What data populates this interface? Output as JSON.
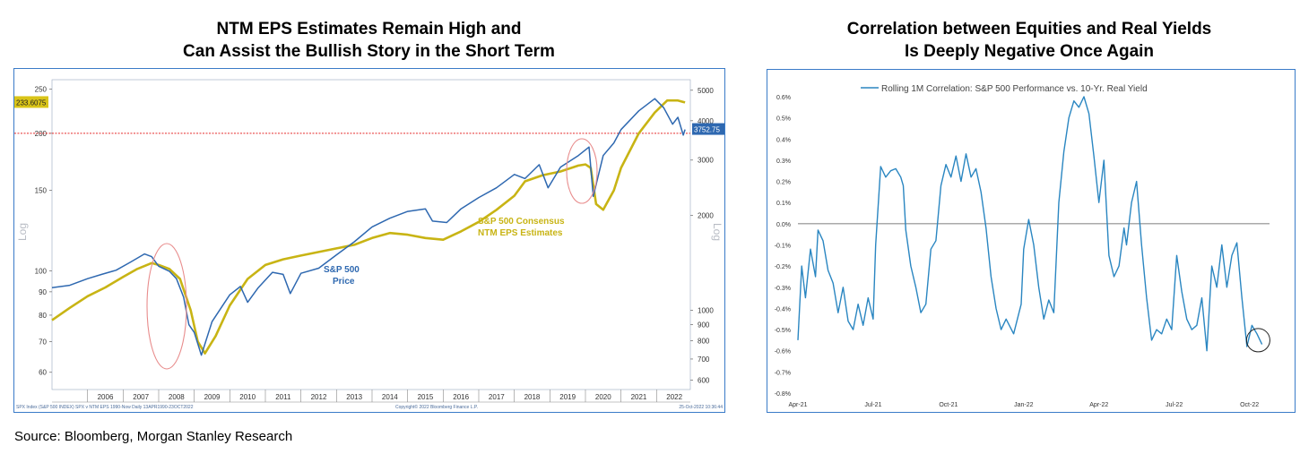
{
  "titles": {
    "left": [
      "NTM EPS Estimates Remain High and",
      "Can Assist the Bullish Story in the Short Term"
    ],
    "right": [
      "Correlation between Equities and Real Yields",
      "Is Deeply Negative Once Again"
    ]
  },
  "source": "Source: Bloomberg, Morgan Stanley Research",
  "colors": {
    "spx": "#2e68b0",
    "eps": "#c8b414",
    "corr": "#2a86c1",
    "refline": "#e52b2b",
    "panel_border": "#3a7bc8"
  },
  "chart_data": [
    {
      "type": "line",
      "title": "NTM EPS Estimates Remain High and Can Assist the Bullish Story in the Short Term",
      "left_axis_label": "Log",
      "right_axis_label": "Log",
      "left_ticks": [
        "250",
        "200",
        "150",
        "100",
        "90",
        "80",
        "70",
        "60"
      ],
      "right_ticks": [
        "5000",
        "4000",
        "3000",
        "2000",
        "1000",
        "900",
        "800",
        "700",
        "600"
      ],
      "x_ticks": [
        "2006",
        "2007",
        "2008",
        "2009",
        "2010",
        "2011",
        "2012",
        "2013",
        "2014",
        "2015",
        "2016",
        "2017",
        "2018",
        "2019",
        "2020",
        "2021",
        "2022"
      ],
      "ref_line_value": 200,
      "last_eps_label": "233.6075",
      "last_spx_label": "3752.75",
      "footer_left": "SPX Index (S&P 500 INDEX) SPX v NTM EPS 1990-Now Daily 13APR1990-23OCT2022",
      "footer_mid": "Copyright© 2022 Bloomberg Finance L.P.",
      "footer_right": "25-Oct-2022 10:36:44",
      "series": [
        {
          "name": "S&P 500 Price",
          "label_lines": [
            "S&P 500",
            "Price"
          ],
          "axis": "right",
          "x": [
            2005.0,
            2005.5,
            2006.0,
            2006.4,
            2006.8,
            2007.2,
            2007.6,
            2007.8,
            2008.0,
            2008.3,
            2008.5,
            2008.7,
            2008.85,
            2009.0,
            2009.2,
            2009.5,
            2010.0,
            2010.3,
            2010.5,
            2010.8,
            2011.2,
            2011.5,
            2011.7,
            2012.0,
            2012.5,
            2013.0,
            2013.5,
            2014.0,
            2014.5,
            2015.0,
            2015.5,
            2015.7,
            2016.1,
            2016.5,
            2017.0,
            2017.5,
            2018.0,
            2018.3,
            2018.7,
            2018.95,
            2019.3,
            2019.8,
            2020.1,
            2020.22,
            2020.5,
            2020.8,
            2021.0,
            2021.5,
            2021.95,
            2022.2,
            2022.45,
            2022.6,
            2022.75,
            2022.8
          ],
          "values": [
            1180,
            1200,
            1260,
            1300,
            1340,
            1420,
            1510,
            1480,
            1380,
            1330,
            1260,
            1100,
            900,
            850,
            720,
            920,
            1120,
            1190,
            1060,
            1180,
            1320,
            1300,
            1130,
            1310,
            1360,
            1500,
            1650,
            1840,
            1960,
            2060,
            2100,
            1920,
            1900,
            2100,
            2280,
            2450,
            2700,
            2620,
            2900,
            2450,
            2850,
            3100,
            3300,
            2300,
            3100,
            3400,
            3750,
            4300,
            4700,
            4400,
            3900,
            4100,
            3600,
            3752.75
          ]
        },
        {
          "name": "S&P 500 Consensus NTM EPS Estimates",
          "label_lines": [
            "S&P 500 Consensus",
            "NTM EPS Estimates"
          ],
          "axis": "left",
          "x": [
            2005.0,
            2005.5,
            2006.0,
            2006.5,
            2007.0,
            2007.4,
            2007.8,
            2008.0,
            2008.3,
            2008.6,
            2008.9,
            2009.1,
            2009.3,
            2009.6,
            2010.0,
            2010.5,
            2011.0,
            2011.5,
            2012.0,
            2012.5,
            2013.0,
            2013.5,
            2014.0,
            2014.5,
            2015.0,
            2015.5,
            2016.0,
            2016.5,
            2017.0,
            2017.5,
            2018.0,
            2018.3,
            2018.8,
            2019.3,
            2019.8,
            2020.0,
            2020.15,
            2020.3,
            2020.5,
            2020.8,
            2021.0,
            2021.5,
            2021.95,
            2022.3,
            2022.6,
            2022.8
          ],
          "values": [
            78,
            83,
            88,
            92,
            97,
            101,
            104,
            103,
            101,
            96,
            82,
            70,
            66,
            72,
            84,
            96,
            103,
            106,
            108,
            110,
            112,
            114,
            118,
            121,
            120,
            118,
            117,
            122,
            128,
            136,
            146,
            157,
            162,
            165,
            170,
            171,
            168,
            140,
            136,
            150,
            168,
            200,
            222,
            236,
            236,
            233.6
          ]
        }
      ],
      "annotations": [
        "S&P 500 Price label",
        "S&P 500 Consensus NTM EPS Estimates label",
        "circle around 2008-2009 drop",
        "circle around 2020 drop"
      ]
    },
    {
      "type": "line",
      "title": "Correlation between Equities and Real Yields Is Deeply Negative Once Again",
      "legend": "Rolling 1M Correlation: S&P 500 Performance vs. 10-Yr. Real Yield",
      "ylim": [
        -0.8,
        0.6
      ],
      "y_ticks": [
        "0.6%",
        "0.5%",
        "0.4%",
        "0.3%",
        "0.2%",
        "0.1%",
        "0.0%",
        "-0.1%",
        "-0.2%",
        "-0.3%",
        "-0.4%",
        "-0.5%",
        "-0.6%",
        "-0.7%",
        "-0.8%"
      ],
      "x_ticks": [
        "Apr-21",
        "Jul-21",
        "Oct-21",
        "Jan-22",
        "Apr-22",
        "Jul-22",
        "Oct-22"
      ],
      "xlim": [
        0,
        18.8
      ],
      "series": [
        {
          "name": "Rolling 1M Correlation: S&P 500 Performance vs. 10-Yr. Real Yield",
          "x": [
            0.0,
            0.15,
            0.3,
            0.5,
            0.7,
            0.8,
            1.0,
            1.2,
            1.4,
            1.6,
            1.8,
            2.0,
            2.2,
            2.4,
            2.6,
            2.8,
            3.0,
            3.1,
            3.3,
            3.5,
            3.7,
            3.9,
            4.1,
            4.2,
            4.3,
            4.5,
            4.7,
            4.9,
            5.1,
            5.3,
            5.5,
            5.7,
            5.9,
            6.1,
            6.3,
            6.5,
            6.7,
            6.9,
            7.1,
            7.3,
            7.5,
            7.7,
            7.9,
            8.1,
            8.3,
            8.6,
            8.9,
            9.0,
            9.2,
            9.4,
            9.6,
            9.8,
            10.0,
            10.2,
            10.4,
            10.6,
            10.8,
            11.0,
            11.2,
            11.4,
            11.6,
            11.8,
            12.0,
            12.2,
            12.4,
            12.6,
            12.8,
            13.0,
            13.1,
            13.3,
            13.5,
            13.7,
            13.9,
            14.1,
            14.3,
            14.5,
            14.7,
            14.9,
            15.1,
            15.3,
            15.5,
            15.7,
            15.9,
            16.1,
            16.3,
            16.5,
            16.7,
            16.9,
            17.1,
            17.3,
            17.5,
            17.7,
            17.9,
            18.1,
            18.3,
            18.5
          ],
          "values": [
            -0.55,
            -0.2,
            -0.35,
            -0.12,
            -0.25,
            -0.03,
            -0.08,
            -0.22,
            -0.28,
            -0.42,
            -0.3,
            -0.46,
            -0.5,
            -0.38,
            -0.48,
            -0.35,
            -0.45,
            -0.1,
            0.27,
            0.22,
            0.25,
            0.26,
            0.22,
            0.18,
            -0.03,
            -0.2,
            -0.3,
            -0.42,
            -0.38,
            -0.12,
            -0.08,
            0.18,
            0.28,
            0.22,
            0.32,
            0.2,
            0.33,
            0.22,
            0.26,
            0.15,
            -0.02,
            -0.25,
            -0.4,
            -0.5,
            -0.45,
            -0.52,
            -0.38,
            -0.12,
            0.02,
            -0.1,
            -0.3,
            -0.45,
            -0.36,
            -0.42,
            0.1,
            0.34,
            0.5,
            0.58,
            0.55,
            0.6,
            0.52,
            0.32,
            0.1,
            0.3,
            -0.15,
            -0.25,
            -0.2,
            -0.02,
            -0.1,
            0.1,
            0.2,
            -0.1,
            -0.35,
            -0.55,
            -0.5,
            -0.52,
            -0.45,
            -0.5,
            -0.15,
            -0.32,
            -0.45,
            -0.5,
            -0.48,
            -0.35,
            -0.6,
            -0.2,
            -0.3,
            -0.1,
            -0.3,
            -0.15,
            -0.09,
            -0.35,
            -0.58,
            -0.48,
            -0.52,
            -0.57
          ]
        }
      ],
      "annotations": [
        "circle around latest value"
      ]
    }
  ]
}
